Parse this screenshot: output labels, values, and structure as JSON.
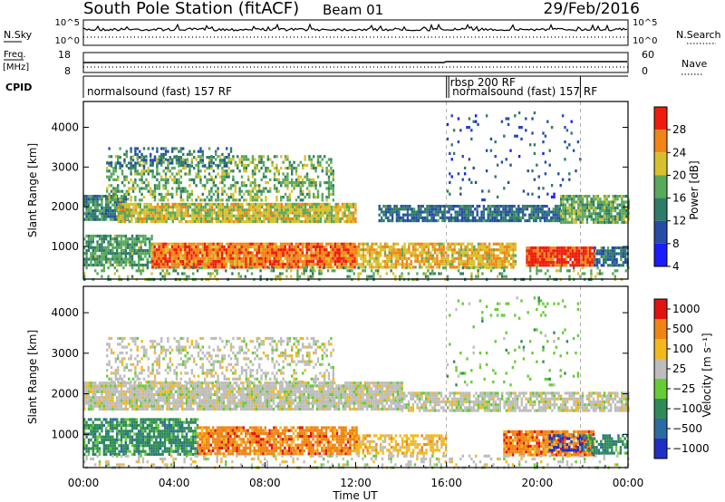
{
  "header": {
    "station": "South Pole Station (fitACF)",
    "beam": "Beam 01",
    "date": "29/Feb/2016"
  },
  "strips": {
    "nsky_label": "N.Sky",
    "nsearch_label": "N.Search",
    "nsky_ticks": [
      "10^5",
      "10^0"
    ],
    "freq_label_1": "Freq.",
    "freq_label_2": "[MHz]",
    "freq_ticks": [
      "18",
      "8"
    ],
    "nave_label": "Nave",
    "nave_ticks": [
      "60",
      "0"
    ],
    "cpid_label": "CPID",
    "cpid_segments": [
      {
        "name": "normalsound (fast) 157 RF",
        "start_hr": 0.0,
        "end_hr": 16.0
      },
      {
        "name": "rbsp 200 RF",
        "start_hr": 16.0,
        "end_hr": 16.1
      },
      {
        "name": "normalsound (fast) 157 RF",
        "start_hr": 16.1,
        "end_hr": 21.9
      }
    ]
  },
  "chart_data": [
    {
      "type": "heatmap",
      "title": "",
      "quantity": "Power",
      "ylabel": "Slant Range [km]",
      "colorbar_label": "Power [dB]",
      "colorbar_ticks": [
        "28",
        "24",
        "20",
        "16",
        "12",
        "8",
        "4"
      ],
      "colorbar_range": [
        0,
        32
      ],
      "colorbar_colors": [
        "#1b1bff",
        "#264ca8",
        "#2d7b68",
        "#58a95a",
        "#d8c02c",
        "#f18515",
        "#ef1c0d"
      ],
      "yticks": [
        "4000",
        "3000",
        "2000",
        "1000"
      ],
      "ylim": [
        180,
        4650
      ],
      "xlim_hr": [
        0,
        24
      ],
      "dashed_markers_hr": [
        16.0,
        21.9
      ],
      "bands": [
        {
          "start_hr": 0.0,
          "end_hr": 2.0,
          "range_lo": 1700,
          "range_hi": 2300,
          "value": 12,
          "density": 0.85
        },
        {
          "start_hr": 1.5,
          "end_hr": 12.0,
          "range_lo": 1600,
          "range_hi": 2100,
          "value": 20,
          "density": 0.9
        },
        {
          "start_hr": 1.0,
          "end_hr": 11.0,
          "range_lo": 2200,
          "range_hi": 3300,
          "value": 16,
          "density": 0.45
        },
        {
          "start_hr": 1.0,
          "end_hr": 6.5,
          "range_lo": 3000,
          "range_hi": 3500,
          "value": 10,
          "density": 0.4
        },
        {
          "start_hr": 13.0,
          "end_hr": 21.0,
          "range_lo": 1650,
          "range_hi": 2050,
          "value": 10,
          "density": 0.8
        },
        {
          "start_hr": 21.0,
          "end_hr": 24.0,
          "range_lo": 1600,
          "range_hi": 2300,
          "value": 16,
          "density": 0.85
        },
        {
          "start_hr": 0.0,
          "end_hr": 3.0,
          "range_lo": 500,
          "range_hi": 1300,
          "value": 14,
          "density": 0.8
        },
        {
          "start_hr": 3.0,
          "end_hr": 12.0,
          "range_lo": 500,
          "range_hi": 1100,
          "value": 26,
          "density": 0.95
        },
        {
          "start_hr": 12.0,
          "end_hr": 19.0,
          "range_lo": 500,
          "range_hi": 1100,
          "value": 22,
          "density": 0.8
        },
        {
          "start_hr": 19.5,
          "end_hr": 22.5,
          "range_lo": 500,
          "range_hi": 1000,
          "value": 29,
          "density": 0.95
        },
        {
          "start_hr": 22.5,
          "end_hr": 24.0,
          "range_lo": 500,
          "range_hi": 1000,
          "value": 10,
          "density": 0.7
        },
        {
          "start_hr": 16.0,
          "end_hr": 22.0,
          "range_lo": 2200,
          "range_hi": 4400,
          "value": 8,
          "density": 0.06
        },
        {
          "start_hr": 0.0,
          "end_hr": 24.0,
          "range_lo": 180,
          "range_hi": 500,
          "value": 16,
          "density": 0.25
        }
      ]
    },
    {
      "type": "heatmap",
      "title": "",
      "quantity": "Velocity",
      "xlabel": "Time UT",
      "ylabel": "Slant Range [km]",
      "colorbar_label": "Velocity [m s⁻¹]",
      "colorbar_ticks": [
        "1000",
        "500",
        "100",
        "25",
        "−25",
        "−100",
        "−500",
        "−1000"
      ],
      "colorbar_colors": [
        "#1f2fc6",
        "#2c6aa3",
        "#2e8b57",
        "#66cc33",
        "#bdbdbd",
        "#f3b81b",
        "#f08412",
        "#e11212"
      ],
      "xticks": [
        "00:00",
        "04:00",
        "08:00",
        "12:00",
        "16:00",
        "20:00",
        "00:00"
      ],
      "yticks": [
        "4000",
        "3000",
        "2000",
        "1000"
      ],
      "ylim": [
        180,
        4650
      ],
      "xlim_hr": [
        0,
        24
      ],
      "dashed_markers_hr": [
        16.0,
        21.9
      ],
      "bands": [
        {
          "start_hr": 0.0,
          "end_hr": 14.0,
          "range_lo": 1600,
          "range_hi": 2300,
          "cls": 4,
          "density": 0.9
        },
        {
          "start_hr": 1.0,
          "end_hr": 11.0,
          "range_lo": 2300,
          "range_hi": 3400,
          "cls": 4,
          "density": 0.35
        },
        {
          "start_hr": 14.0,
          "end_hr": 24.0,
          "range_lo": 1550,
          "range_hi": 2050,
          "cls": 4,
          "density": 0.75
        },
        {
          "start_hr": 0.0,
          "end_hr": 5.0,
          "range_lo": 500,
          "range_hi": 1400,
          "cls": 2,
          "density": 0.75
        },
        {
          "start_hr": 5.0,
          "end_hr": 12.0,
          "range_lo": 500,
          "range_hi": 1200,
          "cls": 6,
          "density": 0.85
        },
        {
          "start_hr": 12.0,
          "end_hr": 16.0,
          "range_lo": 500,
          "range_hi": 1000,
          "cls": 5,
          "density": 0.6
        },
        {
          "start_hr": 18.5,
          "end_hr": 22.5,
          "range_lo": 500,
          "range_hi": 1100,
          "cls": 6,
          "density": 0.9
        },
        {
          "start_hr": 20.5,
          "end_hr": 22.0,
          "range_lo": 600,
          "range_hi": 1000,
          "cls": 0,
          "density": 0.45
        },
        {
          "start_hr": 22.0,
          "end_hr": 24.0,
          "range_lo": 500,
          "range_hi": 1000,
          "cls": 2,
          "density": 0.7
        },
        {
          "start_hr": 16.0,
          "end_hr": 22.0,
          "range_lo": 2200,
          "range_hi": 4400,
          "cls": 3,
          "density": 0.06
        },
        {
          "start_hr": 0.0,
          "end_hr": 24.0,
          "range_lo": 180,
          "range_hi": 500,
          "cls": 4,
          "density": 0.25
        }
      ]
    }
  ]
}
